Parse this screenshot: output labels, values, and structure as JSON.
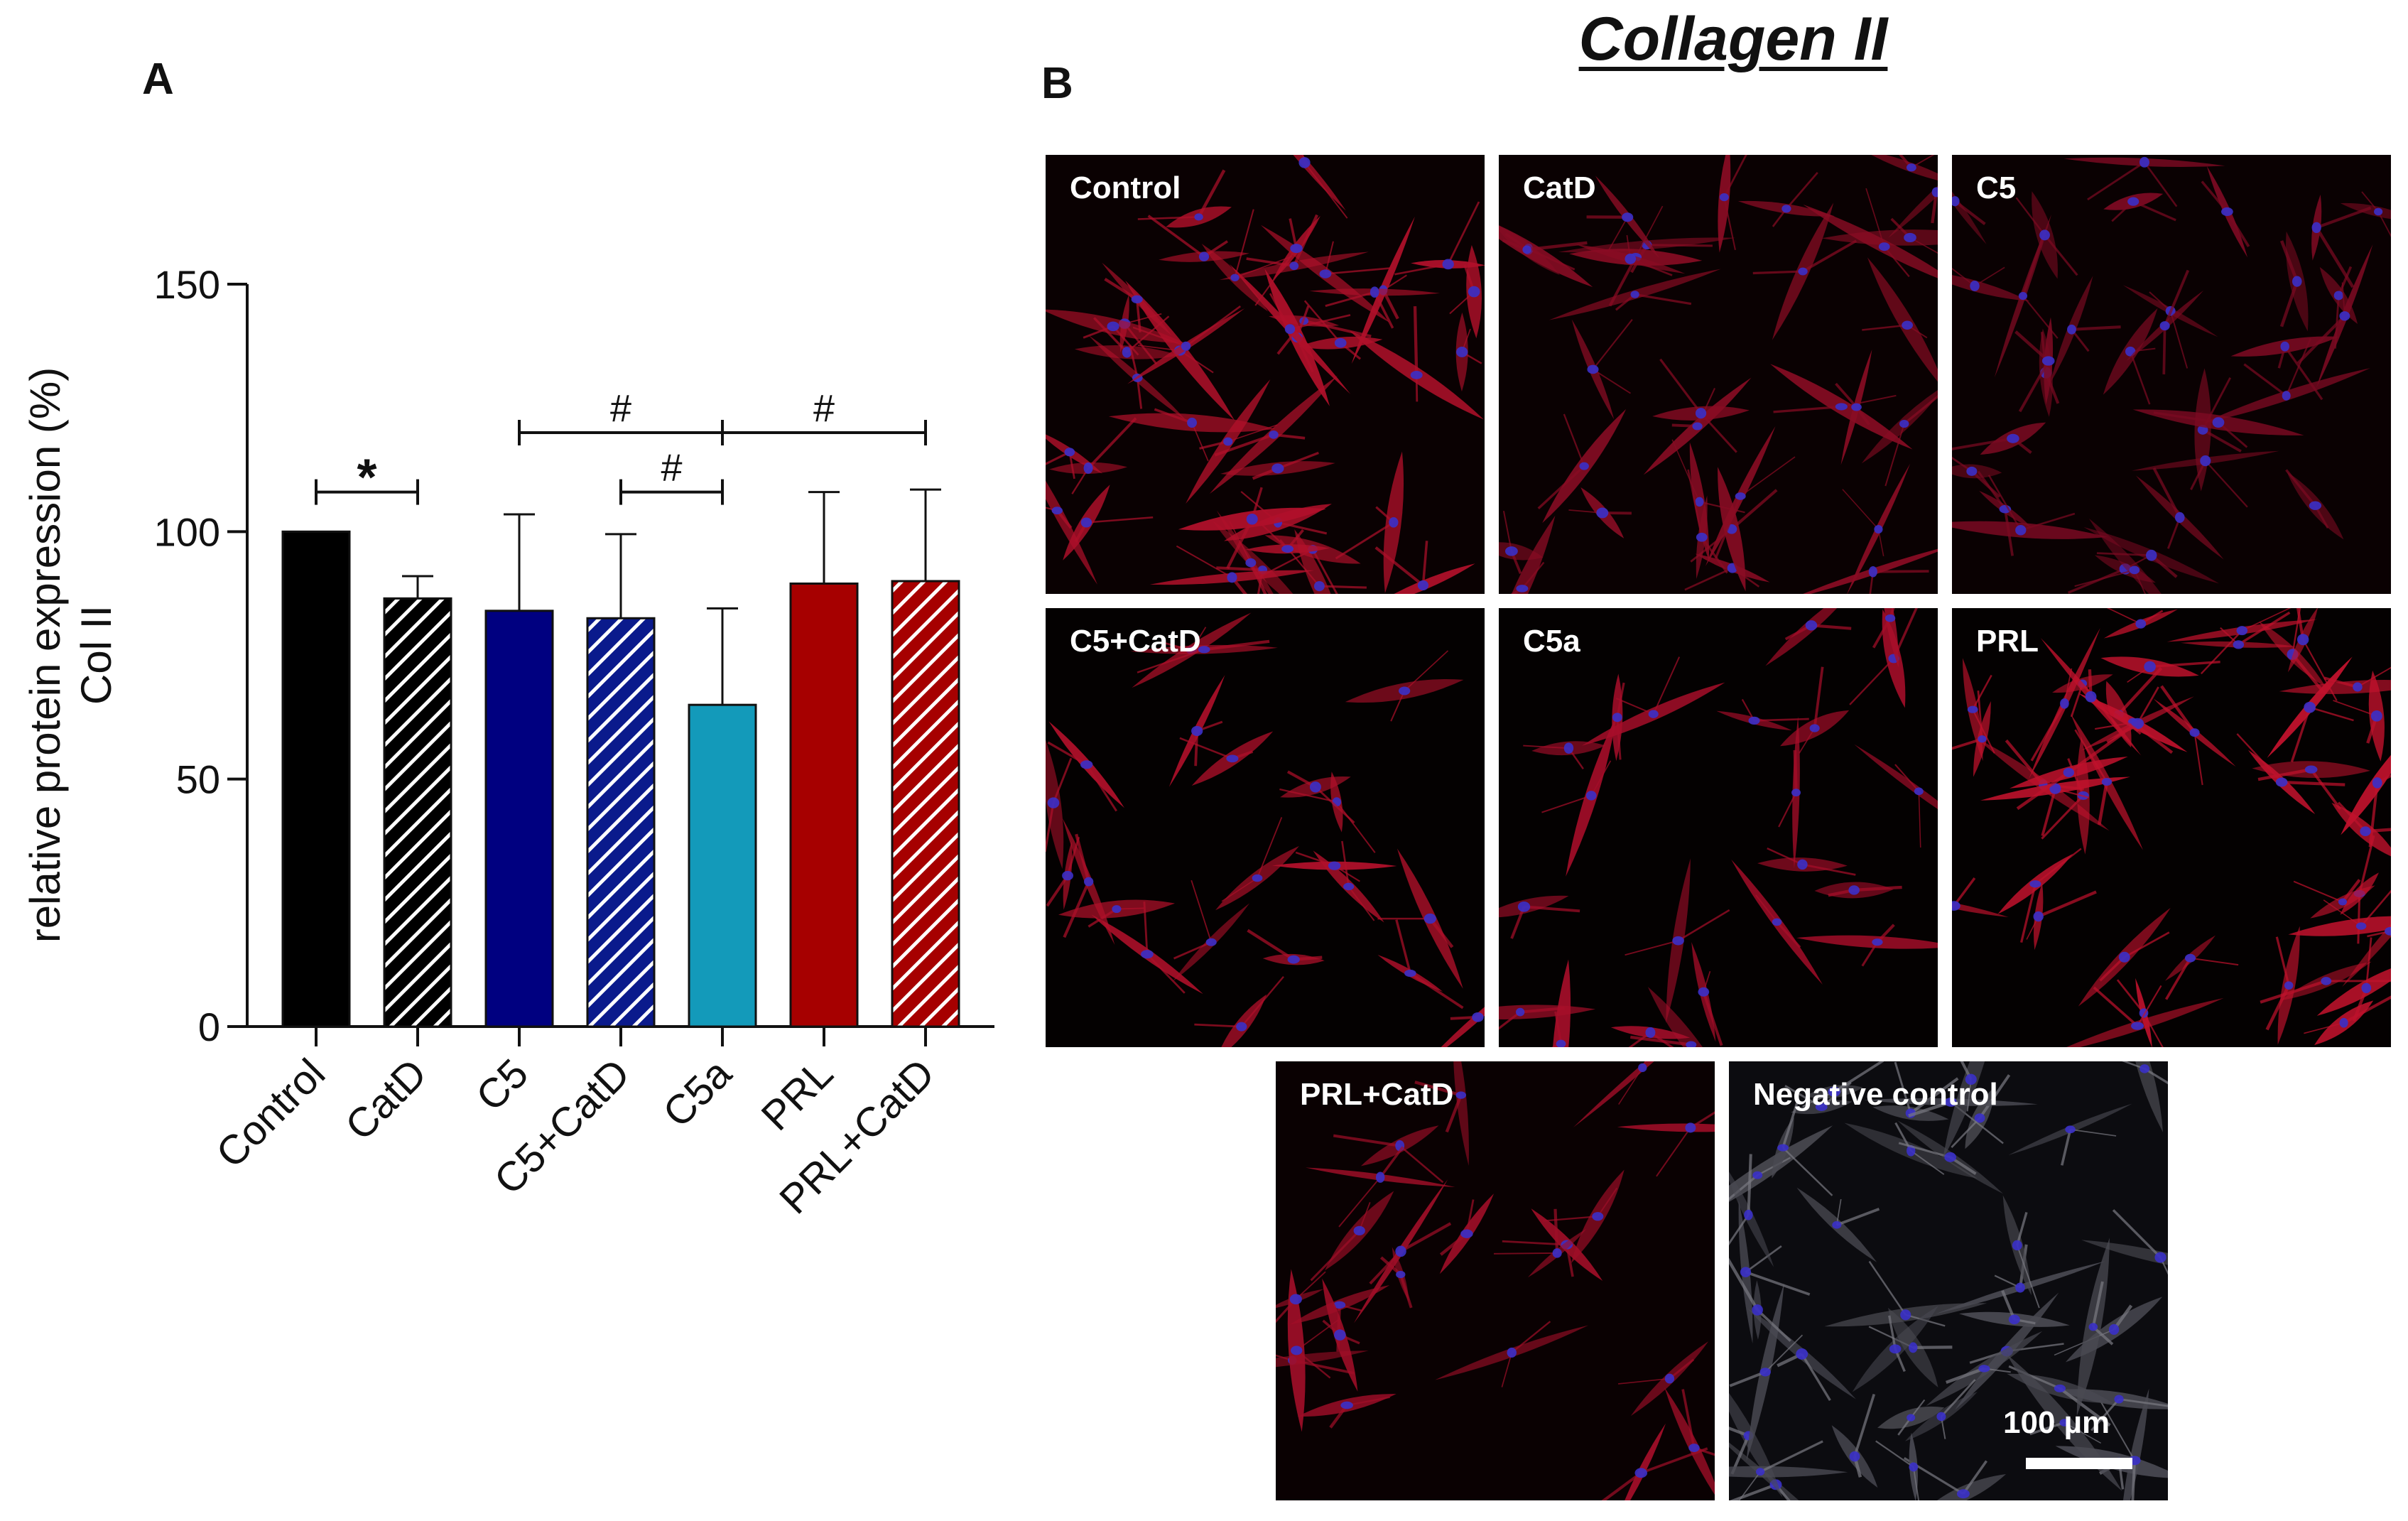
{
  "figure": {
    "title": "Collagen II",
    "panel_a_letter": "A",
    "panel_b_letter": "B"
  },
  "chart_data": {
    "type": "bar",
    "categories": [
      "Control",
      "CatD",
      "C5",
      "C5+CatD",
      "C5a",
      "PRL",
      "PRL+CatD"
    ],
    "values": [
      100,
      86.5,
      84,
      82.5,
      65,
      89.5,
      90
    ],
    "errors": [
      0,
      4.5,
      19.5,
      17,
      19.5,
      18.5,
      18.5
    ],
    "colors": [
      "#000000",
      "#000000",
      "#000080",
      "#0a1a8c",
      "#139aba",
      "#a60000",
      "#a60000"
    ],
    "hatched": [
      false,
      true,
      false,
      true,
      false,
      false,
      true
    ],
    "ylabel": "relative protein expression (%)",
    "ylabel2": "Col II",
    "xlabel": "",
    "ylim": [
      0,
      150
    ],
    "yticks": [
      0,
      50,
      100,
      150
    ],
    "grid": false,
    "significance": [
      {
        "from": 0,
        "to": 1,
        "y": 108,
        "label": "*"
      },
      {
        "from": 3,
        "to": 4,
        "y": 108,
        "label": "#"
      },
      {
        "from": 2,
        "to": 4,
        "y": 120,
        "label": "#"
      },
      {
        "from": 4,
        "to": 6,
        "y": 120,
        "label": "#"
      }
    ]
  },
  "micrographs": [
    {
      "label": "Control",
      "density": "high",
      "cell_color": "#b0102a",
      "background": "#0a0102"
    },
    {
      "label": "CatD",
      "density": "medium",
      "cell_color": "#8a0c24",
      "background": "#0a0102"
    },
    {
      "label": "C5",
      "density": "medium",
      "cell_color": "#7c0a22",
      "background": "#0a0102"
    },
    {
      "label": "C5+CatD",
      "density": "low",
      "cell_color": "#b0102a",
      "background": "#040101"
    },
    {
      "label": "C5a",
      "density": "low",
      "cell_color": "#a80e2a",
      "background": "#040101"
    },
    {
      "label": "PRL",
      "density": "high",
      "cell_color": "#c0122c",
      "background": "#040101"
    },
    {
      "label": "PRL+CatD",
      "density": "low",
      "cell_color": "#a00e28",
      "background": "#0a0102"
    },
    {
      "label": "Negative control",
      "density": "high",
      "cell_color": "#4a4a52",
      "background": "#0c0c10"
    }
  ],
  "scale_bar": {
    "label": "100 µm",
    "color": "#ffffff"
  },
  "colors": {
    "nuclei": "#3a30c8",
    "cytoskeleton_gray": "#7a7a82"
  }
}
